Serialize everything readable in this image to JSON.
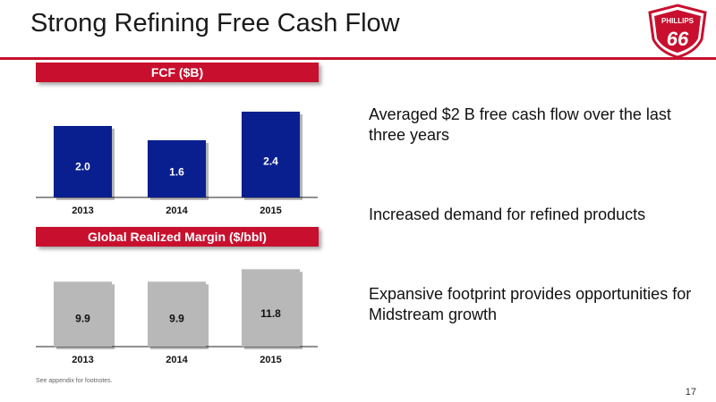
{
  "title": "Strong Refining Free Cash Flow",
  "logo": {
    "line1": "PHILLIPS",
    "line2": "66"
  },
  "colors": {
    "accent": "#c8102e",
    "fcf_bar": "#0a1f8f",
    "margin_bar": "#b8b8b8"
  },
  "chart_data": [
    {
      "type": "bar",
      "title": "FCF ($B)",
      "categories": [
        "2013",
        "2014",
        "2015"
      ],
      "values": [
        2.0,
        1.6,
        2.4
      ],
      "value_labels": [
        "2.0",
        "1.6",
        "2.4"
      ],
      "xlabel": "",
      "ylabel": "",
      "ylim": [
        0,
        2.6
      ],
      "grid": false
    },
    {
      "type": "bar",
      "title": "Global Realized Margin ($/bbl)",
      "categories": [
        "2013",
        "2014",
        "2015"
      ],
      "values": [
        9.9,
        9.9,
        11.8
      ],
      "value_labels": [
        "9.9",
        "9.9",
        "11.8"
      ],
      "xlabel": "",
      "ylabel": "",
      "ylim": [
        0,
        12.8
      ],
      "grid": false
    }
  ],
  "bullets": [
    "Averaged $2 B free cash flow over the last three years",
    "Increased demand for refined products",
    "Expansive footprint provides opportunities for Midstream growth"
  ],
  "footnote": "See appendix for footnotes.",
  "page_number": "17"
}
